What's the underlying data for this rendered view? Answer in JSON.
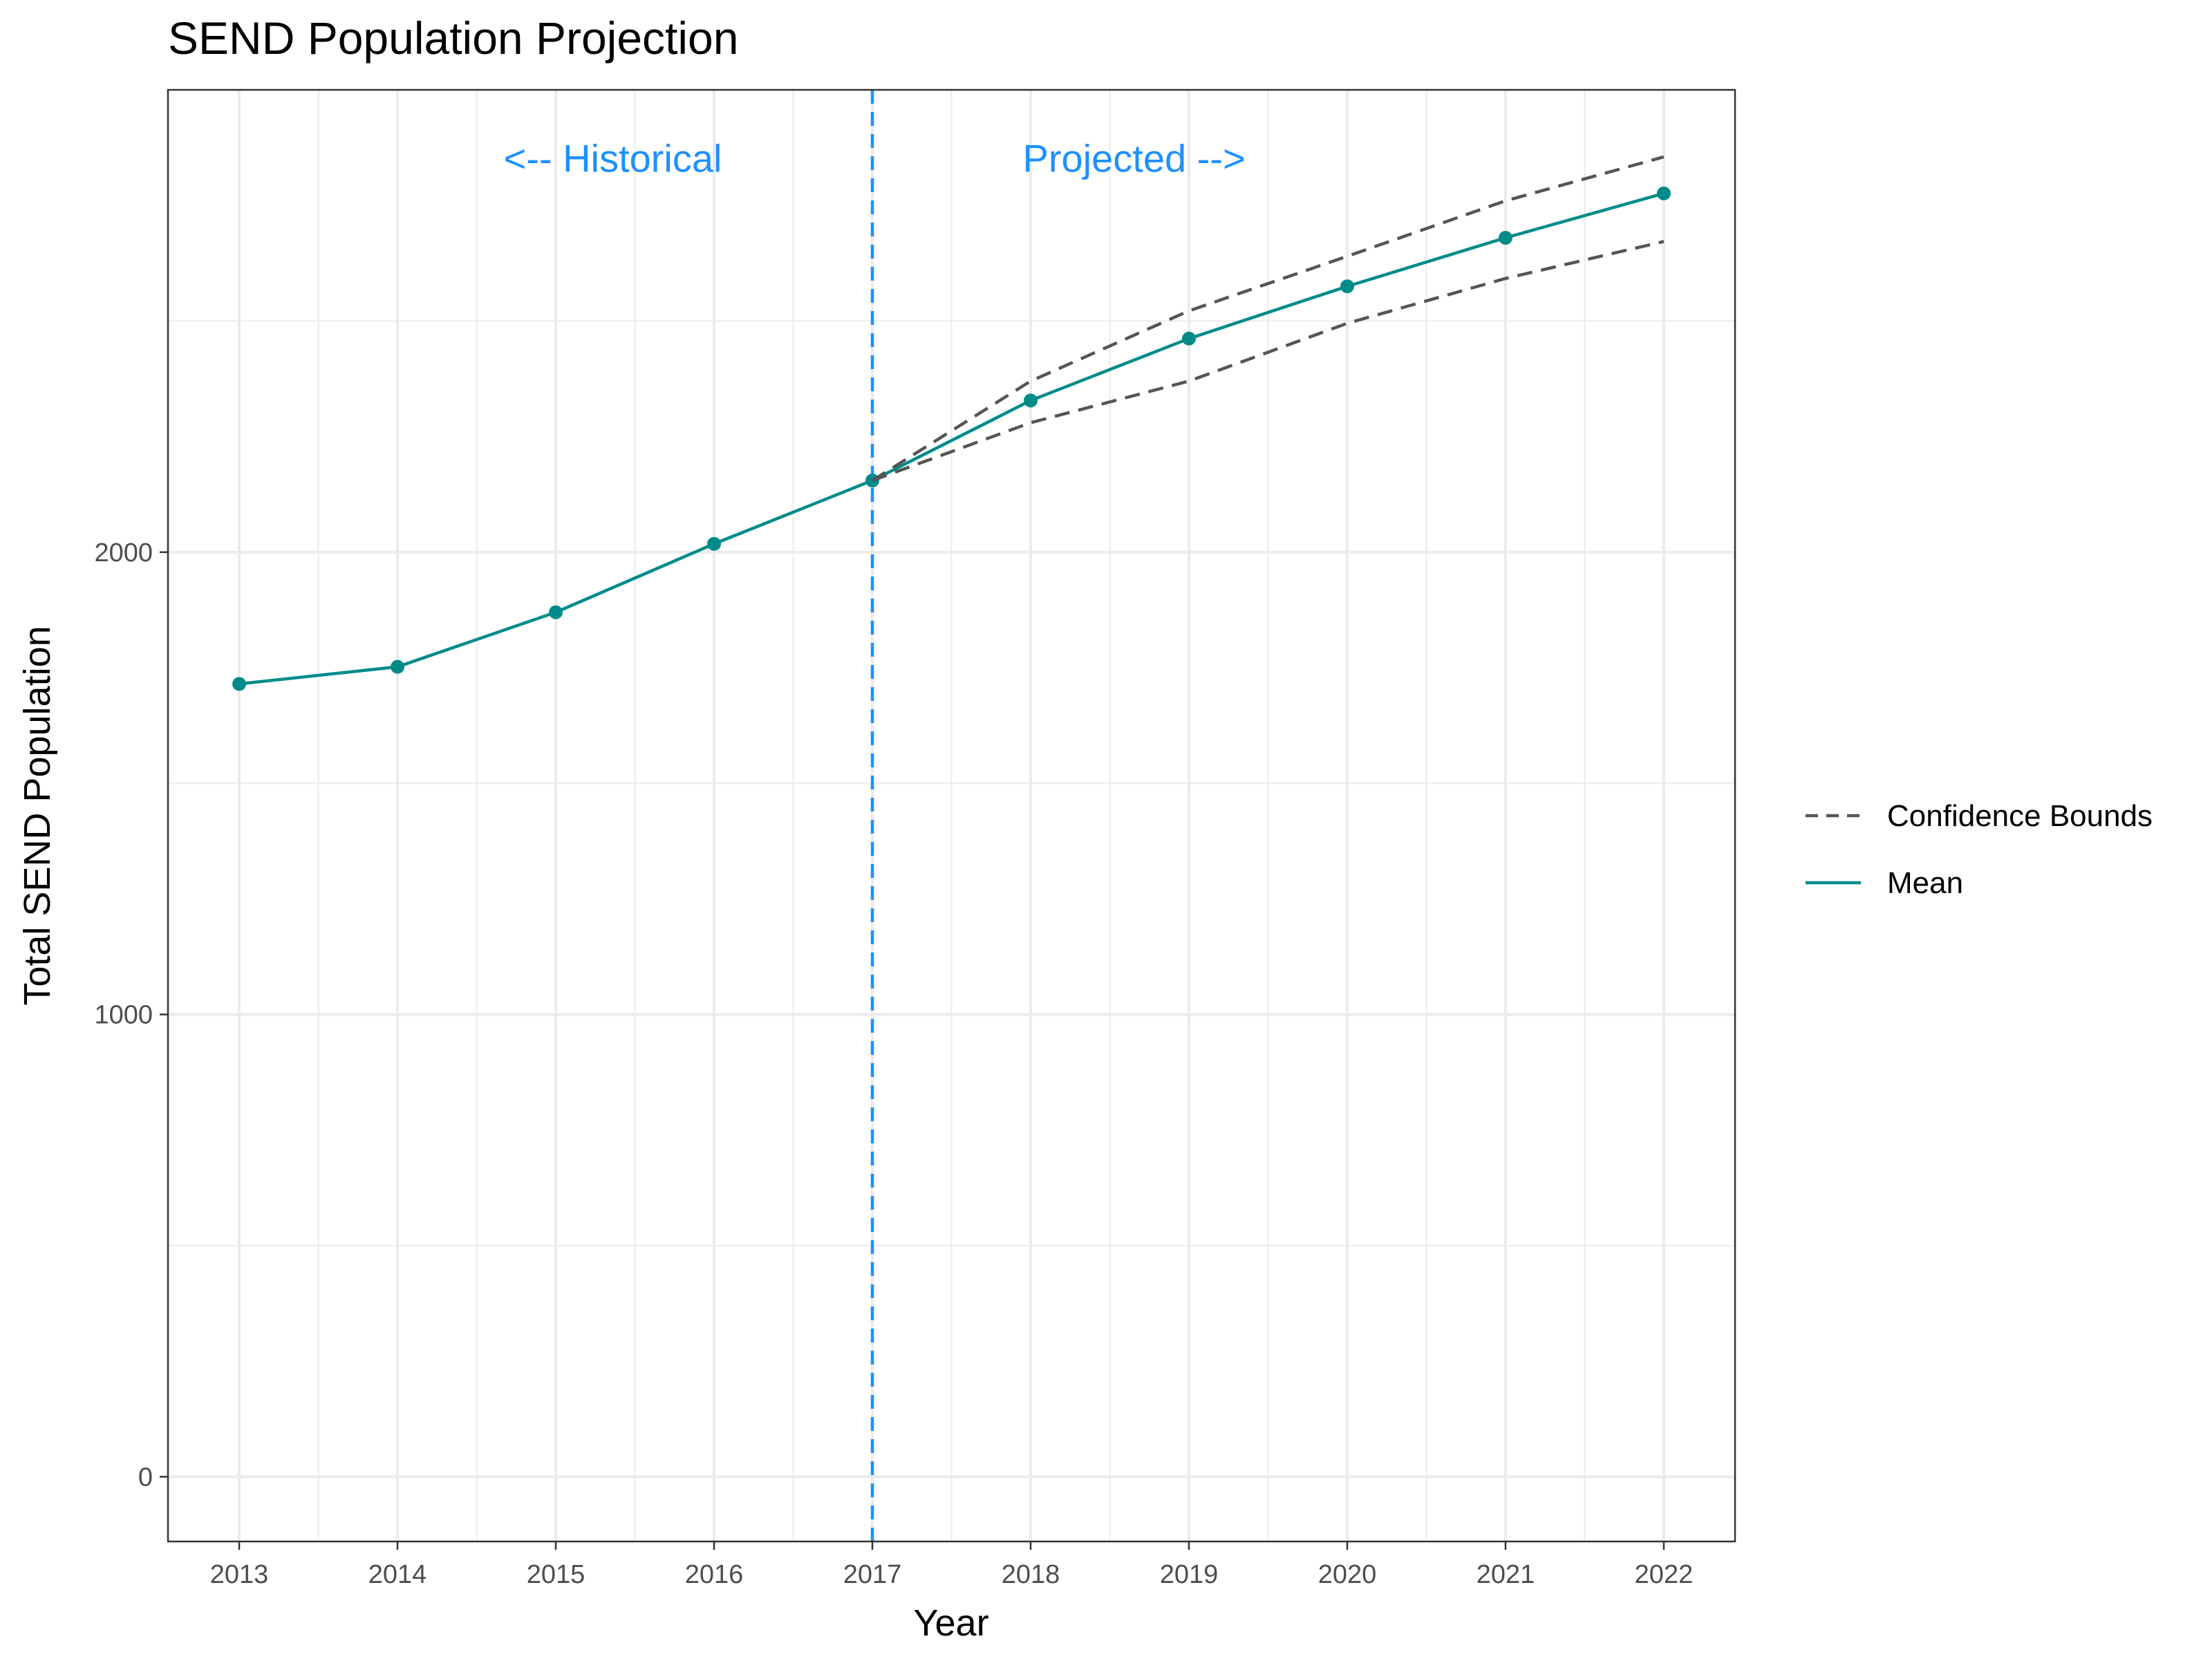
{
  "chart_data": {
    "type": "line",
    "title": "SEND Population Projection",
    "xlabel": "Year",
    "ylabel": "Total SEND Population",
    "x": [
      2013,
      2014,
      2015,
      2016,
      2017,
      2018,
      2019,
      2020,
      2021,
      2022
    ],
    "x_tick_labels": [
      "2013",
      "2014",
      "2015",
      "2016",
      "2017",
      "2018",
      "2019",
      "2020",
      "2021",
      "2022"
    ],
    "y_ticks": [
      0,
      1000,
      2000
    ],
    "y_tick_labels": [
      "0",
      "1000",
      "2000"
    ],
    "xlim": [
      2012.55,
      2022.45
    ],
    "ylim": [
      -140,
      3000
    ],
    "grid": true,
    "series": [
      {
        "name": "Mean",
        "color": "#008b8b",
        "style": "solid",
        "markers": true,
        "x": [
          2013,
          2014,
          2015,
          2016,
          2017,
          2018,
          2019,
          2020,
          2021,
          2022
        ],
        "values": [
          1715,
          1752,
          1870,
          2018,
          2155,
          2328,
          2462,
          2575,
          2680,
          2776
        ]
      },
      {
        "name": "Confidence Bounds",
        "color": "#555555",
        "style": "dashed",
        "markers": false,
        "x": [
          2017,
          2018,
          2019,
          2020,
          2021,
          2022
        ],
        "upper": [
          2155,
          2370,
          2522,
          2640,
          2760,
          2855
        ],
        "lower": [
          2155,
          2280,
          2370,
          2495,
          2592,
          2672
        ]
      }
    ],
    "reference_line": {
      "x": 2017,
      "color": "#1e90ff",
      "style": "dashed"
    },
    "annotations": [
      {
        "text": "<-- Historical",
        "x": 2016.05,
        "y": 2845,
        "anchor": "end",
        "color": "#1e90ff"
      },
      {
        "text": "Projected -->",
        "x": 2017.95,
        "y": 2845,
        "anchor": "start",
        "color": "#1e90ff"
      }
    ],
    "legend": {
      "placement": "right",
      "entries": [
        {
          "label": "Confidence Bounds",
          "color": "#555555",
          "style": "dashed"
        },
        {
          "label": "Mean",
          "color": "#008b8b",
          "style": "solid"
        }
      ]
    }
  }
}
